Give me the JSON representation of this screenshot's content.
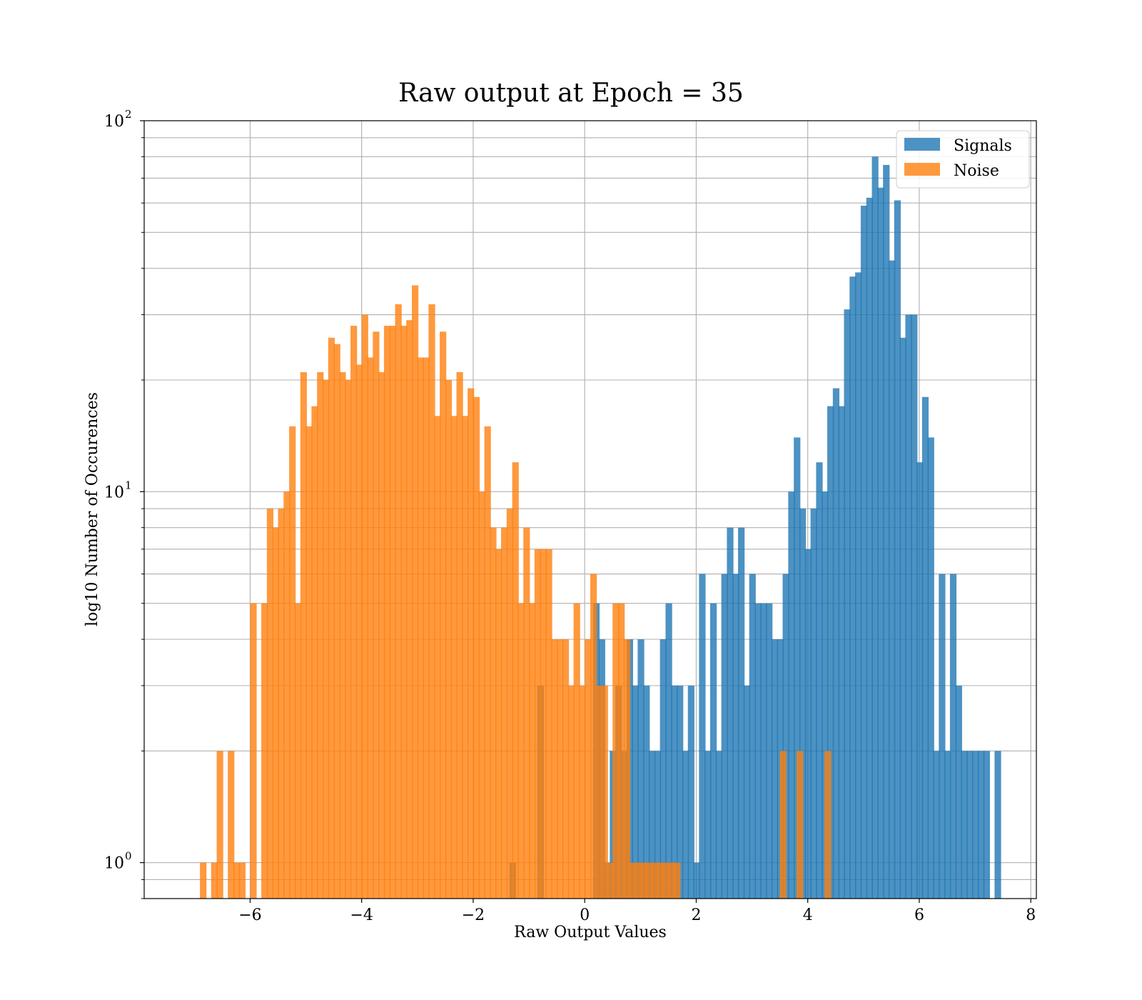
{
  "chart_data": {
    "type": "histogram",
    "title": "Raw output at Epoch = 35",
    "xlabel": "Raw Output Values",
    "ylabel": "log10 Number of Occurences",
    "yscale": "log",
    "xlim": [
      -7.9,
      8.1
    ],
    "ylim": [
      0.8,
      100
    ],
    "grid": true,
    "x_ticks": [
      -6,
      -4,
      -2,
      0,
      2,
      4,
      6,
      8
    ],
    "x_tick_labels": [
      "−6",
      "−4",
      "−2",
      "0",
      "2",
      "4",
      "6",
      "8"
    ],
    "y_ticks": [
      {
        "value": 1,
        "base": "10",
        "exp": "0"
      },
      {
        "value": 10,
        "base": "10",
        "exp": "1"
      },
      {
        "value": 100,
        "base": "10",
        "exp": "2"
      }
    ],
    "legend_position": "top-right",
    "bin_width": 0.1178,
    "series": [
      {
        "name": "Signals",
        "color": "#1f77b4",
        "opacity": 0.8,
        "bins": [
          [
            -1.9,
            1
          ],
          [
            -1.4,
            3
          ],
          [
            -0.4,
            5
          ],
          [
            -0.3,
            4
          ],
          [
            -0.2,
            1
          ],
          [
            -0.1,
            2
          ],
          [
            0.0,
            3
          ],
          [
            0.1,
            2
          ],
          [
            0.2,
            4
          ],
          [
            0.3,
            3
          ],
          [
            0.4,
            4
          ],
          [
            0.5,
            3
          ],
          [
            0.6,
            2
          ],
          [
            0.7,
            2
          ],
          [
            0.8,
            4
          ],
          [
            0.9,
            5
          ],
          [
            1.0,
            3
          ],
          [
            1.1,
            3
          ],
          [
            1.2,
            2
          ],
          [
            1.3,
            3
          ],
          [
            1.4,
            1
          ],
          [
            1.5,
            6
          ],
          [
            1.6,
            2
          ],
          [
            1.7,
            5
          ],
          [
            1.8,
            2
          ],
          [
            1.9,
            6
          ],
          [
            2.0,
            8
          ],
          [
            2.1,
            6
          ],
          [
            2.2,
            8
          ],
          [
            2.3,
            3
          ],
          [
            2.4,
            6
          ],
          [
            2.5,
            5
          ],
          [
            2.6,
            5
          ],
          [
            2.7,
            5
          ],
          [
            2.8,
            4
          ],
          [
            2.9,
            4
          ],
          [
            3.0,
            6
          ],
          [
            3.1,
            10
          ],
          [
            3.2,
            14
          ],
          [
            3.3,
            9
          ],
          [
            3.4,
            7
          ],
          [
            3.5,
            9
          ],
          [
            3.6,
            12
          ],
          [
            3.7,
            10
          ],
          [
            3.8,
            17
          ],
          [
            3.9,
            19
          ],
          [
            4.0,
            17
          ],
          [
            4.1,
            31
          ],
          [
            4.2,
            38
          ],
          [
            4.3,
            39
          ],
          [
            4.4,
            59
          ],
          [
            4.5,
            62
          ],
          [
            4.6,
            80
          ],
          [
            4.7,
            66
          ],
          [
            4.8,
            76
          ],
          [
            4.9,
            42
          ],
          [
            5.0,
            61
          ],
          [
            5.1,
            26
          ],
          [
            5.2,
            30
          ],
          [
            5.3,
            30
          ],
          [
            5.4,
            12
          ],
          [
            5.5,
            18
          ],
          [
            5.6,
            14
          ],
          [
            5.7,
            2
          ],
          [
            5.8,
            6
          ],
          [
            5.9,
            2
          ],
          [
            6.0,
            6
          ],
          [
            6.1,
            3
          ],
          [
            6.2,
            2
          ],
          [
            6.3,
            2
          ],
          [
            6.4,
            2
          ],
          [
            6.5,
            2
          ],
          [
            6.6,
            2
          ],
          [
            6.8,
            2
          ]
        ],
        "x_offset": 0.55
      },
      {
        "name": "Noise",
        "color": "#ff7f0e",
        "opacity": 0.8,
        "bins": [
          [
            -6.9,
            1
          ],
          [
            -6.7,
            1
          ],
          [
            -6.6,
            2
          ],
          [
            -6.4,
            2
          ],
          [
            -6.3,
            1
          ],
          [
            -6.2,
            1
          ],
          [
            -6.0,
            5
          ],
          [
            -5.8,
            5
          ],
          [
            -5.7,
            9
          ],
          [
            -5.6,
            8
          ],
          [
            -5.5,
            9
          ],
          [
            -5.4,
            10
          ],
          [
            -5.3,
            15
          ],
          [
            -5.2,
            5
          ],
          [
            -5.1,
            21
          ],
          [
            -5.0,
            15
          ],
          [
            -4.9,
            17
          ],
          [
            -4.8,
            21
          ],
          [
            -4.7,
            20
          ],
          [
            -4.6,
            26
          ],
          [
            -4.5,
            25
          ],
          [
            -4.4,
            21
          ],
          [
            -4.3,
            20
          ],
          [
            -4.2,
            28
          ],
          [
            -4.1,
            22
          ],
          [
            -4.0,
            30
          ],
          [
            -3.9,
            23
          ],
          [
            -3.8,
            27
          ],
          [
            -3.7,
            21
          ],
          [
            -3.6,
            28
          ],
          [
            -3.5,
            28
          ],
          [
            -3.4,
            32
          ],
          [
            -3.3,
            28
          ],
          [
            -3.2,
            29
          ],
          [
            -3.1,
            36
          ],
          [
            -3.0,
            23
          ],
          [
            -2.9,
            23
          ],
          [
            -2.8,
            32
          ],
          [
            -2.7,
            16
          ],
          [
            -2.6,
            27
          ],
          [
            -2.5,
            20
          ],
          [
            -2.4,
            16
          ],
          [
            -2.3,
            21
          ],
          [
            -2.2,
            16
          ],
          [
            -2.1,
            19
          ],
          [
            -2.0,
            18
          ],
          [
            -1.9,
            10
          ],
          [
            -1.8,
            15
          ],
          [
            -1.7,
            8
          ],
          [
            -1.6,
            7
          ],
          [
            -1.5,
            8
          ],
          [
            -1.4,
            9
          ],
          [
            -1.3,
            12
          ],
          [
            -1.2,
            5
          ],
          [
            -1.1,
            8
          ],
          [
            -1.0,
            5
          ],
          [
            -0.9,
            7
          ],
          [
            -0.8,
            7
          ],
          [
            -0.7,
            7
          ],
          [
            -0.6,
            4
          ],
          [
            -0.5,
            4
          ],
          [
            -0.4,
            4
          ],
          [
            -0.3,
            3
          ],
          [
            -0.2,
            5
          ],
          [
            -0.1,
            3
          ],
          [
            0.0,
            4
          ],
          [
            0.1,
            6
          ],
          [
            0.2,
            3
          ],
          [
            0.3,
            3
          ],
          [
            0.4,
            1
          ],
          [
            0.5,
            5
          ],
          [
            0.6,
            5
          ],
          [
            0.7,
            4
          ],
          [
            0.8,
            1
          ],
          [
            0.9,
            1
          ],
          [
            1.0,
            1
          ],
          [
            1.1,
            1
          ],
          [
            1.2,
            1
          ],
          [
            1.3,
            1
          ],
          [
            1.4,
            1
          ],
          [
            1.5,
            1
          ],
          [
            1.6,
            1
          ],
          [
            3.5,
            2
          ],
          [
            3.8,
            2
          ],
          [
            4.3,
            2
          ]
        ],
        "x_offset": 0
      }
    ]
  }
}
